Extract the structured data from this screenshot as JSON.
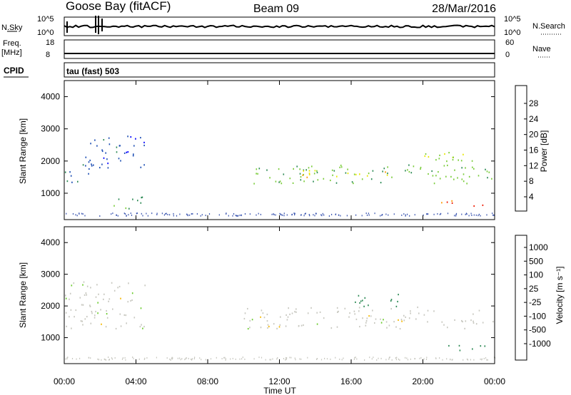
{
  "header": {
    "station": "Goose Bay (fitACF)",
    "beam": "Beam 09",
    "date": "28/Mar/2016"
  },
  "status_panels": {
    "nsky": {
      "label": "N.Sky",
      "ticks": [
        "10^5",
        "10^0"
      ]
    },
    "nsearch": {
      "label": "N.Search",
      "ticks": [
        "10^5",
        "10^0"
      ]
    },
    "freq": {
      "label_top": "Freq.",
      "label_unit": "[MHz]",
      "ticks": [
        "18",
        "8"
      ]
    },
    "nave": {
      "label": "Nave",
      "ticks": [
        "60",
        "0"
      ]
    },
    "cpid": {
      "label": "CPID",
      "value": "tau (fast) 503"
    }
  },
  "chart_data": [
    {
      "type": "heatmap",
      "name_printed": "Power",
      "xlabel": "",
      "ylabel": "Slant Range [km]",
      "x_ticks": [
        "00:00",
        "04:00",
        "08:00",
        "12:00",
        "16:00",
        "20:00",
        "00:00"
      ],
      "x_range_hours": [
        0,
        24
      ],
      "y_ticks": [
        "1000",
        "2000",
        "3000",
        "4000"
      ],
      "y_range_km": [
        180,
        4500
      ],
      "colorbar": {
        "label": "Power [dB]",
        "ticks": [
          "4",
          "8",
          "12",
          "16",
          "20",
          "24",
          "28"
        ],
        "range": [
          0,
          30
        ],
        "colors": [
          "#0000ff",
          "#1e4fb4",
          "#2d8a55",
          "#7acc3a",
          "#e8e800",
          "#ff9a00",
          "#ee1a00"
        ]
      },
      "echo_regions": [
        {
          "t": [
            0.0,
            1.6
          ],
          "r": [
            1300,
            2000
          ],
          "value": 8
        },
        {
          "t": [
            1.0,
            4.5
          ],
          "r": [
            1800,
            2800
          ],
          "value": 6
        },
        {
          "t": [
            10.0,
            23.9
          ],
          "r": [
            1300,
            1900
          ],
          "value": 14
        },
        {
          "t": [
            13.0,
            18.0
          ],
          "r": [
            1500,
            1750
          ],
          "value": 20
        },
        {
          "t": [
            19.5,
            23.0
          ],
          "r": [
            1900,
            2300
          ],
          "value": 16
        },
        {
          "t": [
            21.0,
            23.5
          ],
          "r": [
            600,
            800
          ],
          "value": 26
        },
        {
          "t": [
            2.5,
            4.5
          ],
          "r": [
            500,
            900
          ],
          "value": 12
        }
      ]
    },
    {
      "type": "heatmap",
      "name_printed": "Velocity",
      "xlabel": "Time UT",
      "ylabel": "Slant Range [km]",
      "x_ticks": [
        "00:00",
        "04:00",
        "08:00",
        "12:00",
        "16:00",
        "20:00",
        "00:00"
      ],
      "x_range_hours": [
        0,
        24
      ],
      "y_ticks": [
        "1000",
        "2000",
        "3000",
        "4000"
      ],
      "y_range_km": [
        180,
        4500
      ],
      "colorbar": {
        "label": "Velocity [m s^-1]",
        "ticks": [
          "1000",
          "500",
          "100",
          "25",
          "-25",
          "-100",
          "-500",
          "-1000"
        ],
        "colors": [
          "#1e3fa0",
          "#2e6aa8",
          "#2d8a55",
          "#6bcc2d",
          "#c8c8c0",
          "#f5b800",
          "#ff7a00",
          "#e81800"
        ]
      },
      "echo_regions": [
        {
          "t": [
            0.0,
            4.5
          ],
          "r": [
            1300,
            2800
          ],
          "value": 0
        },
        {
          "t": [
            10.0,
            23.9
          ],
          "r": [
            1300,
            2000
          ],
          "value": 0
        },
        {
          "t": [
            16.0,
            19.0
          ],
          "r": [
            2000,
            2400
          ],
          "value": 150
        },
        {
          "t": [
            21.0,
            23.5
          ],
          "r": [
            600,
            800
          ],
          "value": 150
        }
      ]
    }
  ]
}
